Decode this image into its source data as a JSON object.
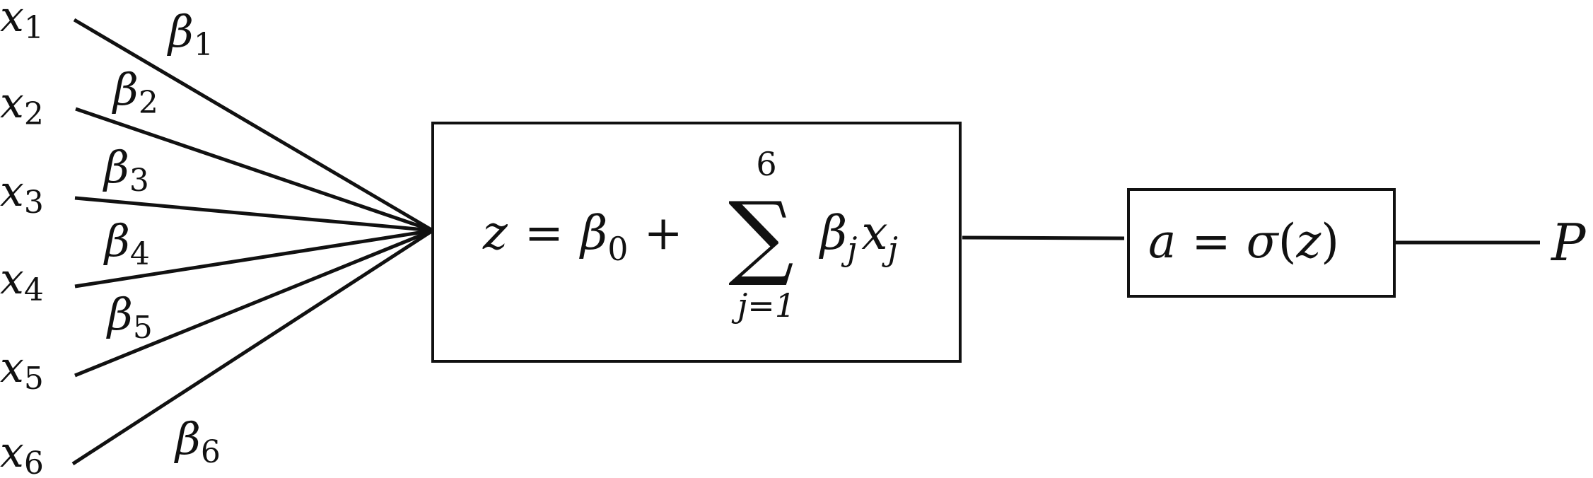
{
  "inputs": [
    {
      "var": "x",
      "sub": "1",
      "weight": "β",
      "weight_sub": "1"
    },
    {
      "var": "x",
      "sub": "2",
      "weight": "β",
      "weight_sub": "2"
    },
    {
      "var": "x",
      "sub": "3",
      "weight": "β",
      "weight_sub": "3"
    },
    {
      "var": "x",
      "sub": "4",
      "weight": "β",
      "weight_sub": "4"
    },
    {
      "var": "x",
      "sub": "5",
      "weight": "β",
      "weight_sub": "5"
    },
    {
      "var": "x",
      "sub": "6",
      "weight": "β",
      "weight_sub": "6"
    }
  ],
  "sum_box": {
    "lhs": "z",
    "equals": "=",
    "beta": "β",
    "beta_sub": "0",
    "plus": "+",
    "sigma": "∑",
    "upper": "6",
    "lower": "j=1",
    "term_beta": "β",
    "term_beta_sub": "j",
    "term_x": "x",
    "term_x_sub": "j"
  },
  "activation_box": {
    "lhs": "a",
    "equals": "=",
    "func": "σ",
    "open": "(",
    "arg": "z",
    "close": ")"
  },
  "output": {
    "label": "P"
  }
}
